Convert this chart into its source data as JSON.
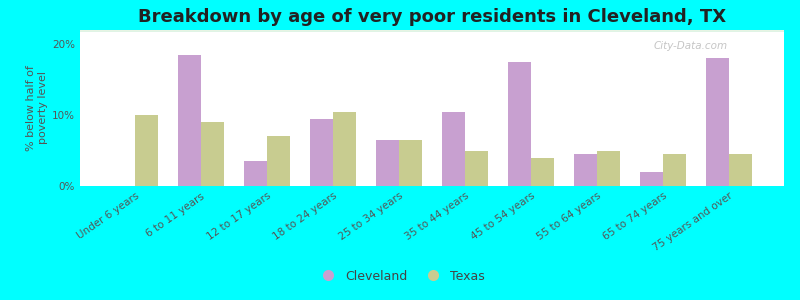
{
  "title": "Breakdown by age of very poor residents in Cleveland, TX",
  "ylabel": "% below half of\npoverty level",
  "categories": [
    "Under 6 years",
    "6 to 11 years",
    "12 to 17 years",
    "18 to 24 years",
    "25 to 34 years",
    "35 to 44 years",
    "45 to 54 years",
    "55 to 64 years",
    "65 to 74 years",
    "75 years and over"
  ],
  "cleveland_values": [
    0,
    18.5,
    3.5,
    9.5,
    6.5,
    10.5,
    17.5,
    4.5,
    2.0,
    18.0
  ],
  "texas_values": [
    10.0,
    9.0,
    7.0,
    10.5,
    6.5,
    5.0,
    4.0,
    5.0,
    4.5,
    4.5
  ],
  "cleveland_color": "#c8a0d0",
  "texas_color": "#c8cc90",
  "background_color": "#00ffff",
  "ylim": [
    0,
    22
  ],
  "yticks": [
    0,
    10,
    20
  ],
  "ytick_labels": [
    "0%",
    "10%",
    "20%"
  ],
  "bar_width": 0.35,
  "title_fontsize": 13,
  "axis_label_fontsize": 8,
  "tick_fontsize": 7.5,
  "legend_labels": [
    "Cleveland",
    "Texas"
  ],
  "watermark": "City-Data.com"
}
